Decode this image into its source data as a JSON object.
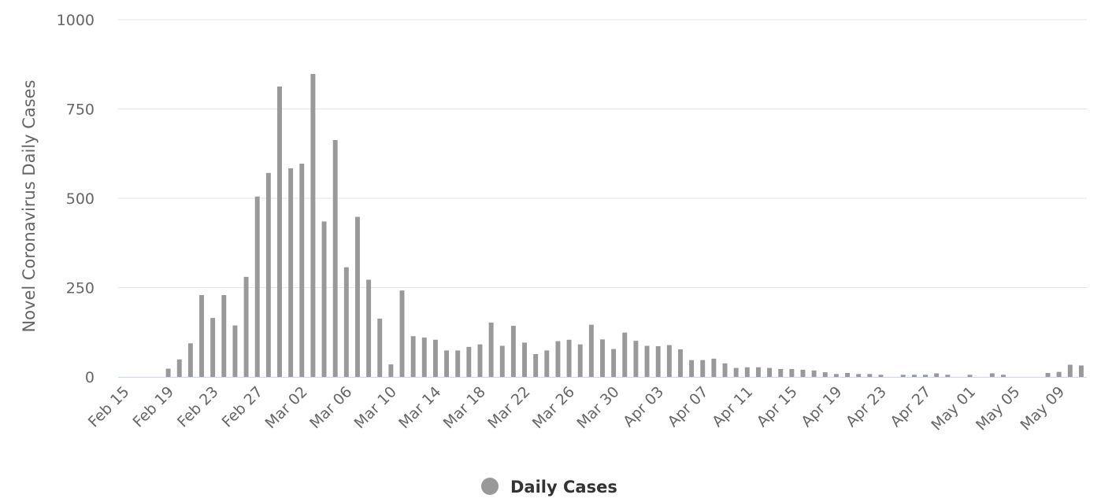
{
  "chart_data": {
    "type": "bar",
    "ylabel": "Novel Coronavirus Daily Cases",
    "ylim": [
      0,
      1000
    ],
    "yticks": [
      "0",
      "250",
      "500",
      "750",
      "1000"
    ],
    "grid": true,
    "legend_position": "bottom-center",
    "x_tick_labels": [
      "Feb 15",
      "Feb 19",
      "Feb 23",
      "Feb 27",
      "Mar 02",
      "Mar 06",
      "Mar 10",
      "Mar 14",
      "Mar 18",
      "Mar 22",
      "Mar 26",
      "Mar 30",
      "Apr 03",
      "Apr 07",
      "Apr 11",
      "Apr 15",
      "Apr 19",
      "Apr 23",
      "Apr 27",
      "May 01",
      "May 05",
      "May 09"
    ],
    "categories": [
      "Feb 15",
      "Feb 16",
      "Feb 17",
      "Feb 18",
      "Feb 19",
      "Feb 20",
      "Feb 21",
      "Feb 22",
      "Feb 23",
      "Feb 24",
      "Feb 25",
      "Feb 26",
      "Feb 27",
      "Feb 28",
      "Feb 29",
      "Mar 01",
      "Mar 02",
      "Mar 03",
      "Mar 04",
      "Mar 05",
      "Mar 06",
      "Mar 07",
      "Mar 08",
      "Mar 09",
      "Mar 10",
      "Mar 11",
      "Mar 12",
      "Mar 13",
      "Mar 14",
      "Mar 15",
      "Mar 16",
      "Mar 17",
      "Mar 18",
      "Mar 19",
      "Mar 20",
      "Mar 21",
      "Mar 22",
      "Mar 23",
      "Mar 24",
      "Mar 25",
      "Mar 26",
      "Mar 27",
      "Mar 28",
      "Mar 29",
      "Mar 30",
      "Mar 31",
      "Apr 01",
      "Apr 02",
      "Apr 03",
      "Apr 04",
      "Apr 05",
      "Apr 06",
      "Apr 07",
      "Apr 08",
      "Apr 09",
      "Apr 10",
      "Apr 11",
      "Apr 12",
      "Apr 13",
      "Apr 14",
      "Apr 15",
      "Apr 16",
      "Apr 17",
      "Apr 18",
      "Apr 19",
      "Apr 20",
      "Apr 21",
      "Apr 22",
      "Apr 23",
      "Apr 24",
      "Apr 25",
      "Apr 26",
      "Apr 27",
      "Apr 28",
      "Apr 29",
      "Apr 30",
      "May 01",
      "May 02",
      "May 03",
      "May 04",
      "May 05",
      "May 06",
      "May 07",
      "May 08",
      "May 09",
      "May 10",
      "May 11"
    ],
    "series": [
      {
        "name": "Daily Cases",
        "color": "#999999",
        "values": [
          0,
          0,
          0,
          0,
          23,
          49,
          94,
          229,
          165,
          229,
          144,
          280,
          505,
          571,
          813,
          584,
          597,
          848,
          435,
          663,
          307,
          448,
          272,
          163,
          35,
          242,
          114,
          110,
          104,
          74,
          74,
          84,
          91,
          152,
          87,
          143,
          96,
          64,
          74,
          100,
          104,
          91,
          146,
          105,
          78,
          124,
          101,
          87,
          86,
          89,
          77,
          47,
          47,
          51,
          38,
          25,
          27,
          27,
          25,
          22,
          22,
          20,
          18,
          13,
          8,
          11,
          8,
          8,
          6,
          0,
          6,
          6,
          6,
          10,
          6,
          0,
          6,
          0,
          10,
          6,
          0,
          0,
          0,
          11,
          14,
          34,
          32
        ]
      }
    ]
  }
}
